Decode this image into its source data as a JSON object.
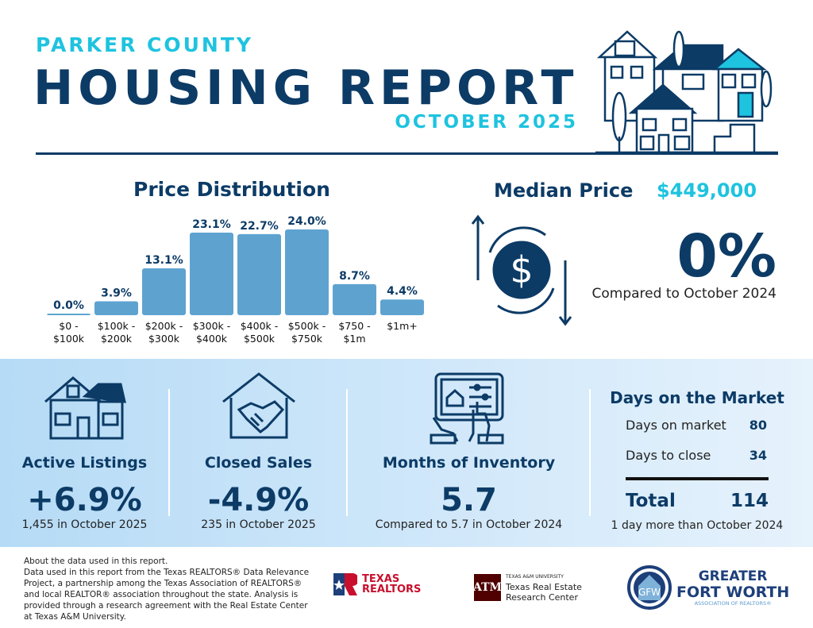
{
  "header": {
    "subtitle": "PARKER COUNTY",
    "title": "HOUSING REPORT",
    "month": "OCTOBER 2025"
  },
  "colors": {
    "navy": "#0c3b66",
    "cyan": "#1ec3df",
    "bar": "#5ea3d0",
    "band": "#c6e2f8"
  },
  "chart_data": {
    "type": "bar",
    "title": "Price Distribution",
    "categories": [
      "$0 - $100k",
      "$100k - $200k",
      "$200k - $300k",
      "$300k - $400k",
      "$400k - $500k",
      "$500k - $750k",
      "$750 - $1m",
      "$1m+"
    ],
    "category_lines": [
      [
        "$0 -",
        "$100k"
      ],
      [
        "$100k -",
        "$200k"
      ],
      [
        "$200k -",
        "$300k"
      ],
      [
        "$300k -",
        "$400k"
      ],
      [
        "$400k -",
        "$500k"
      ],
      [
        "$500k -",
        "$750k"
      ],
      [
        "$750 -",
        "$1m"
      ],
      [
        "$1m+"
      ]
    ],
    "values": [
      0.0,
      3.9,
      13.1,
      23.1,
      22.7,
      24.0,
      8.7,
      4.4
    ],
    "data_labels": [
      "0.0%",
      "3.9%",
      "13.1%",
      "23.1%",
      "22.7%",
      "24.0%",
      "8.7%",
      "4.4%"
    ],
    "unit": "%",
    "grid": false
  },
  "median": {
    "label": "Median Price",
    "value": "$449,000",
    "change": "0%",
    "compare": "Compared to October 2024",
    "icon": "dollar-exchange-icon"
  },
  "stats": [
    {
      "label": "Active Listings",
      "value": "+6.9%",
      "note": "1,455 in October 2025",
      "icon": "house-icon"
    },
    {
      "label": "Closed Sales",
      "value": "-4.9%",
      "note": "235 in October 2025",
      "icon": "handshake-house-icon"
    },
    {
      "label": "Months of Inventory",
      "value": "5.7",
      "note": "Compared to 5.7 in October 2024",
      "icon": "tablet-touch-icon"
    }
  ],
  "dom": {
    "title": "Days on the Market",
    "rows": [
      {
        "label": "Days on market",
        "value": "80"
      },
      {
        "label": "Days to close",
        "value": "34"
      }
    ],
    "total_label": "Total",
    "total_value": "114",
    "note": "1 day more than October 2024"
  },
  "footer": {
    "heading": "About the data used in this report.",
    "body": "Data used in this report from the Texas REALTORS® Data Relevance Project, a partnership among the Texas Association of REALTORS® and local REALTOR® association throughout the state. Analysis is provided through a research agreement with the Real Estate Center at Texas A&M University."
  },
  "logos": {
    "texas_realtors": [
      "TEXAS",
      "REALTORS"
    ],
    "tamu_small": "TEXAS A&M UNIVERSITY",
    "tamu": [
      "Texas Real Estate",
      "Research Center"
    ],
    "gfw": [
      "GREATER",
      "FORT WORTH",
      "ASSOCIATION OF REALTORS®"
    ]
  }
}
